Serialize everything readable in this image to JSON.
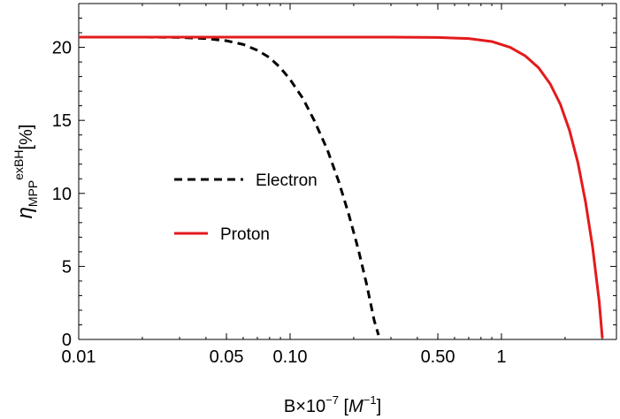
{
  "chart_data": {
    "type": "line",
    "x_scale": "log",
    "xlim": [
      0.01,
      3.5
    ],
    "ylim": [
      0,
      23
    ],
    "grid": false,
    "legend_position": "center-left",
    "xlabel": {
      "text": "B×10",
      "sup": "−7",
      "unit_open": " [",
      "unit_var": "M",
      "unit_sup": "−1",
      "unit_close": "]"
    },
    "ylabel": {
      "symbol": "η",
      "sub": "MPP",
      "sup": "exBH",
      "unit": "[%]"
    },
    "x_ticks": [
      {
        "value": 0.01,
        "label": "0.01"
      },
      {
        "value": 0.05,
        "label": "0.05"
      },
      {
        "value": 0.1,
        "label": "0.10"
      },
      {
        "value": 0.5,
        "label": "0.50"
      },
      {
        "value": 1,
        "label": "1"
      }
    ],
    "y_ticks": [
      {
        "value": 0,
        "label": "0"
      },
      {
        "value": 5,
        "label": "5"
      },
      {
        "value": 10,
        "label": "10"
      },
      {
        "value": 15,
        "label": "15"
      },
      {
        "value": 20,
        "label": "20"
      }
    ],
    "series": [
      {
        "name": "Electron",
        "color": "#000000",
        "dash": "dashed",
        "x": [
          0.01,
          0.02,
          0.03,
          0.04,
          0.05,
          0.06,
          0.07,
          0.08,
          0.09,
          0.1,
          0.115,
          0.13,
          0.15,
          0.17,
          0.19,
          0.21,
          0.23,
          0.25,
          0.262
        ],
        "y": [
          20.7,
          20.7,
          20.68,
          20.6,
          20.45,
          20.2,
          19.8,
          19.3,
          18.6,
          17.8,
          16.5,
          15.0,
          13.0,
          10.8,
          8.5,
          6.2,
          3.8,
          1.3,
          0.3
        ]
      },
      {
        "name": "Proton",
        "color": "#e41a1c",
        "dash": "solid",
        "x": [
          0.01,
          0.1,
          0.3,
          0.5,
          0.7,
          0.9,
          1.1,
          1.3,
          1.5,
          1.7,
          1.9,
          2.1,
          2.3,
          2.5,
          2.7,
          2.9,
          3.0
        ],
        "y": [
          20.7,
          20.7,
          20.7,
          20.68,
          20.6,
          20.4,
          20.0,
          19.4,
          18.6,
          17.5,
          16.1,
          14.3,
          12.1,
          9.4,
          6.3,
          2.6,
          0.1
        ]
      }
    ]
  }
}
